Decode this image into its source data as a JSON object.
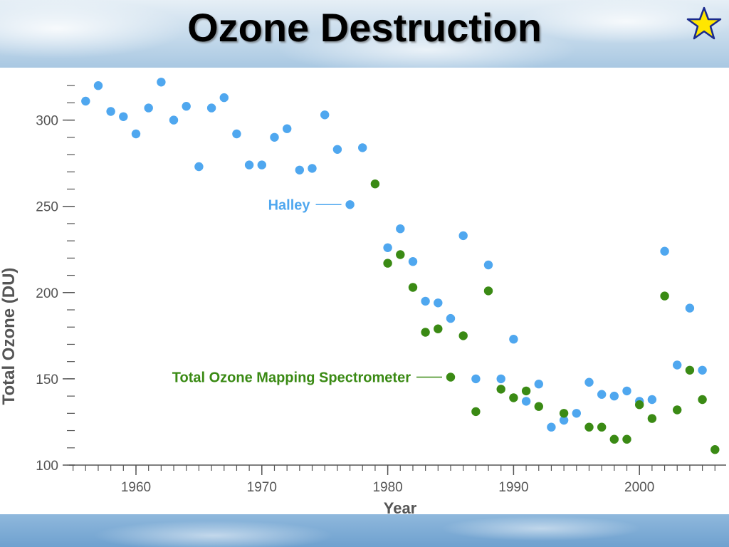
{
  "title": "Ozone Destruction",
  "colors": {
    "halley": "#4fa7ef",
    "toms": "#3a8a14",
    "axis": "#555555",
    "star_fill": "#ffe600",
    "star_stroke": "#1a2a8c"
  },
  "chart_data": {
    "type": "scatter",
    "title": "",
    "xlabel": "Year",
    "ylabel": "Total Ozone (DU)",
    "xlim": [
      1955,
      2007
    ],
    "ylim": [
      100,
      325
    ],
    "xticks": [
      1960,
      1970,
      1980,
      1990,
      2000
    ],
    "xtick_labels": [
      "1960",
      "1970",
      "1980",
      "1990",
      "2000"
    ],
    "yticks": [
      100,
      150,
      200,
      250,
      300
    ],
    "ytick_labels": [
      "100",
      "150",
      "200",
      "250",
      "300"
    ],
    "grid": false,
    "series": [
      {
        "name": "Halley",
        "color": "#4fa7ef",
        "points": [
          [
            1956,
            311
          ],
          [
            1957,
            320
          ],
          [
            1958,
            305
          ],
          [
            1959,
            302
          ],
          [
            1960,
            292
          ],
          [
            1961,
            307
          ],
          [
            1962,
            322
          ],
          [
            1963,
            300
          ],
          [
            1964,
            308
          ],
          [
            1965,
            273
          ],
          [
            1966,
            307
          ],
          [
            1967,
            313
          ],
          [
            1968,
            292
          ],
          [
            1969,
            274
          ],
          [
            1970,
            274
          ],
          [
            1971,
            290
          ],
          [
            1972,
            295
          ],
          [
            1973,
            271
          ],
          [
            1974,
            272
          ],
          [
            1975,
            303
          ],
          [
            1976,
            283
          ],
          [
            1977,
            251
          ],
          [
            1978,
            284
          ],
          [
            1980,
            226
          ],
          [
            1981,
            237
          ],
          [
            1982,
            218
          ],
          [
            1983,
            195
          ],
          [
            1984,
            194
          ],
          [
            1985,
            185
          ],
          [
            1986,
            233
          ],
          [
            1987,
            150
          ],
          [
            1988,
            216
          ],
          [
            1989,
            150
          ],
          [
            1990,
            173
          ],
          [
            1991,
            137
          ],
          [
            1992,
            147
          ],
          [
            1993,
            122
          ],
          [
            1994,
            126
          ],
          [
            1995,
            130
          ],
          [
            1996,
            148
          ],
          [
            1997,
            141
          ],
          [
            1998,
            140
          ],
          [
            1999,
            143
          ],
          [
            2000,
            137
          ],
          [
            2001,
            138
          ],
          [
            2002,
            224
          ],
          [
            2003,
            158
          ],
          [
            2004,
            191
          ],
          [
            2005,
            155
          ]
        ]
      },
      {
        "name": "Total Ozone Mapping Spectrometer",
        "color": "#3a8a14",
        "points": [
          [
            1979,
            263
          ],
          [
            1980,
            217
          ],
          [
            1981,
            222
          ],
          [
            1982,
            203
          ],
          [
            1983,
            177
          ],
          [
            1984,
            179
          ],
          [
            1985,
            151
          ],
          [
            1986,
            175
          ],
          [
            1987,
            131
          ],
          [
            1988,
            201
          ],
          [
            1989,
            144
          ],
          [
            1990,
            139
          ],
          [
            1991,
            143
          ],
          [
            1992,
            134
          ],
          [
            1994,
            130
          ],
          [
            1996,
            122
          ],
          [
            1997,
            122
          ],
          [
            1998,
            115
          ],
          [
            1999,
            115
          ],
          [
            2000,
            135
          ],
          [
            2001,
            127
          ],
          [
            2002,
            198
          ],
          [
            2003,
            132
          ],
          [
            2004,
            155
          ],
          [
            2005,
            138
          ],
          [
            2006,
            109
          ]
        ]
      }
    ],
    "annotations": [
      {
        "text": "Halley",
        "series": 0,
        "point": [
          1977,
          251
        ]
      },
      {
        "text": "Total Ozone Mapping Spectrometer",
        "series": 1,
        "point": [
          1985,
          151
        ]
      }
    ]
  }
}
